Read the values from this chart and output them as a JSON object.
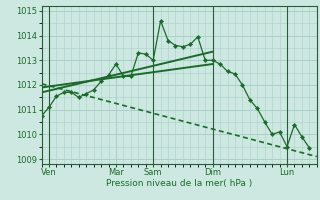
{
  "bg_color": "#cce8e0",
  "grid_color": "#aacfc8",
  "line_color": "#1a6b2a",
  "spine_color": "#2d5a3d",
  "xlabel": "Pression niveau de la mer( hPa )",
  "ylim": [
    1008.8,
    1015.2
  ],
  "xlim": [
    0,
    37
  ],
  "yticks": [
    1009,
    1010,
    1011,
    1012,
    1013,
    1014,
    1015
  ],
  "xtick_pos": [
    1,
    10,
    15,
    23,
    33
  ],
  "xtick_labels": [
    "Ven",
    "Mar",
    "Sam",
    "Dim",
    "Lun"
  ],
  "vline_pos": [
    1,
    15,
    23,
    33
  ],
  "series_x": [
    0,
    1,
    2,
    3,
    4,
    5,
    6,
    7,
    8,
    9,
    10,
    11,
    12,
    13,
    14,
    15,
    16,
    17,
    18,
    19,
    20,
    21,
    22,
    23,
    24,
    25,
    26,
    27,
    28,
    29,
    30,
    31,
    32,
    33,
    34,
    35,
    36
  ],
  "series_y": [
    1010.75,
    1011.1,
    1011.55,
    1011.7,
    1011.7,
    1011.5,
    1011.65,
    1011.8,
    1012.15,
    1012.4,
    1012.85,
    1012.35,
    1012.35,
    1013.3,
    1013.25,
    1013.0,
    1014.6,
    1013.8,
    1013.6,
    1013.55,
    1013.65,
    1013.95,
    1013.0,
    1013.0,
    1012.85,
    1012.55,
    1012.45,
    1012.0,
    1011.4,
    1011.05,
    1010.5,
    1010.0,
    1010.1,
    1009.5,
    1010.4,
    1009.9,
    1009.45
  ],
  "trend1_x": [
    0,
    23
  ],
  "trend1_y": [
    1011.7,
    1013.35
  ],
  "trend2_x": [
    0,
    23
  ],
  "trend2_y": [
    1011.9,
    1012.85
  ],
  "trend3_x": [
    0,
    37
  ],
  "trend3_y": [
    1012.05,
    1009.1
  ]
}
